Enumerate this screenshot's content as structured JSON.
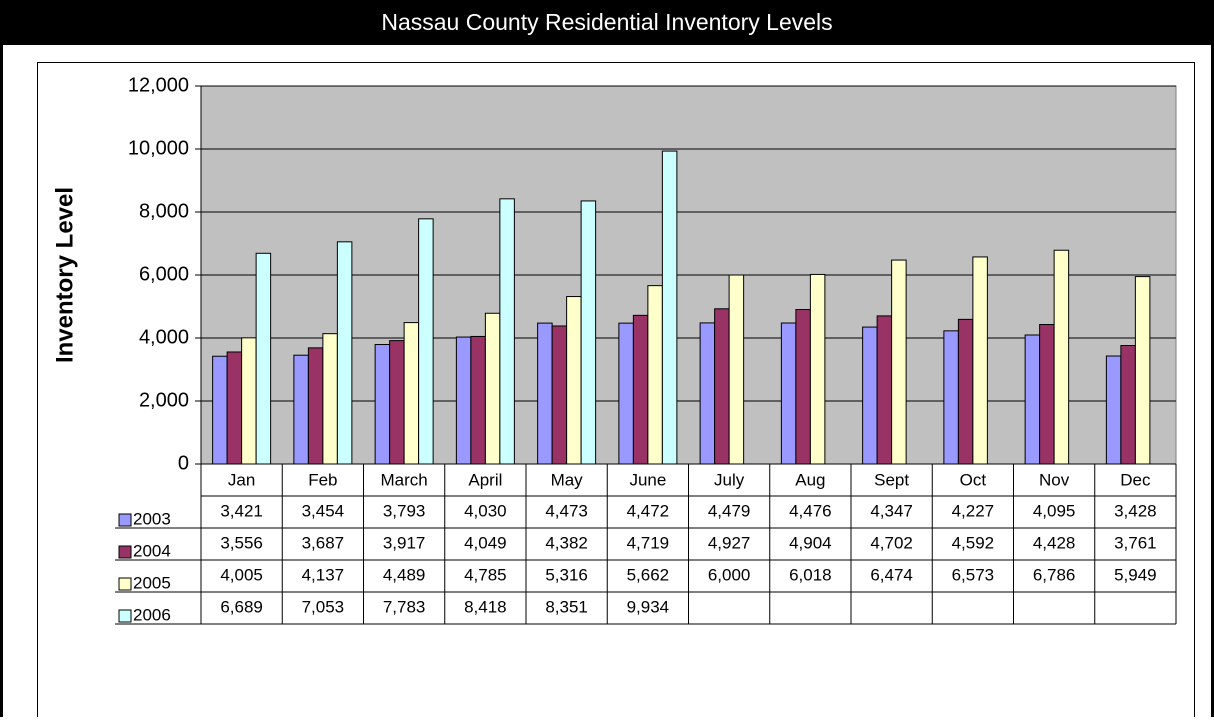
{
  "chart_data": {
    "type": "bar",
    "title": "Nassau County Residential Inventory Levels",
    "y_label": "Inventory Level",
    "categories": [
      "Jan",
      "Feb",
      "March",
      "April",
      "May",
      "June",
      "July",
      "Aug",
      "Sept",
      "Oct",
      "Nov",
      "Dec"
    ],
    "series": [
      {
        "name": "2003",
        "color": "#9999ff",
        "values": [
          3421,
          3454,
          3793,
          4030,
          4473,
          4472,
          4479,
          4476,
          4347,
          4227,
          4095,
          3428
        ],
        "value_labels": [
          "3,421",
          "3,454",
          "3,793",
          "4,030",
          "4,473",
          "4,472",
          "4,479",
          "4,476",
          "4,347",
          "4,227",
          "4,095",
          "3,428"
        ]
      },
      {
        "name": "2004",
        "color": "#993366",
        "values": [
          3556,
          3687,
          3917,
          4049,
          4382,
          4719,
          4927,
          4904,
          4702,
          4592,
          4428,
          3761
        ],
        "value_labels": [
          "3,556",
          "3,687",
          "3,917",
          "4,049",
          "4,382",
          "4,719",
          "4,927",
          "4,904",
          "4,702",
          "4,592",
          "4,428",
          "3,761"
        ]
      },
      {
        "name": "2005",
        "color": "#ffffcc",
        "values": [
          4005,
          4137,
          4489,
          4785,
          5316,
          5662,
          6000,
          6018,
          6474,
          6573,
          6786,
          5949
        ],
        "value_labels": [
          "4,005",
          "4,137",
          "4,489",
          "4,785",
          "5,316",
          "5,662",
          "6,000",
          "6,018",
          "6,474",
          "6,573",
          "6,786",
          "5,949"
        ]
      },
      {
        "name": "2006",
        "color": "#ccffff",
        "values": [
          6689,
          7053,
          7783,
          8418,
          8351,
          9934,
          null,
          null,
          null,
          null,
          null,
          null
        ],
        "value_labels": [
          "6,689",
          "7,053",
          "7,783",
          "8,418",
          "8,351",
          "9,934",
          null,
          null,
          null,
          null,
          null,
          null
        ]
      }
    ],
    "ylim": [
      0,
      12000
    ],
    "yticks": [
      0,
      {
        "value": 2000,
        "label": "2,000"
      },
      {
        "value": 4000,
        "label": "4,000"
      },
      {
        "value": 6000,
        "label": "6,000"
      },
      {
        "value": 8000,
        "label": "8,000"
      },
      {
        "value": 10000,
        "label": "10,000"
      },
      {
        "value": 12000,
        "label": "12,000"
      }
    ],
    "grid": true,
    "plot_background": "#c0c0c0"
  }
}
